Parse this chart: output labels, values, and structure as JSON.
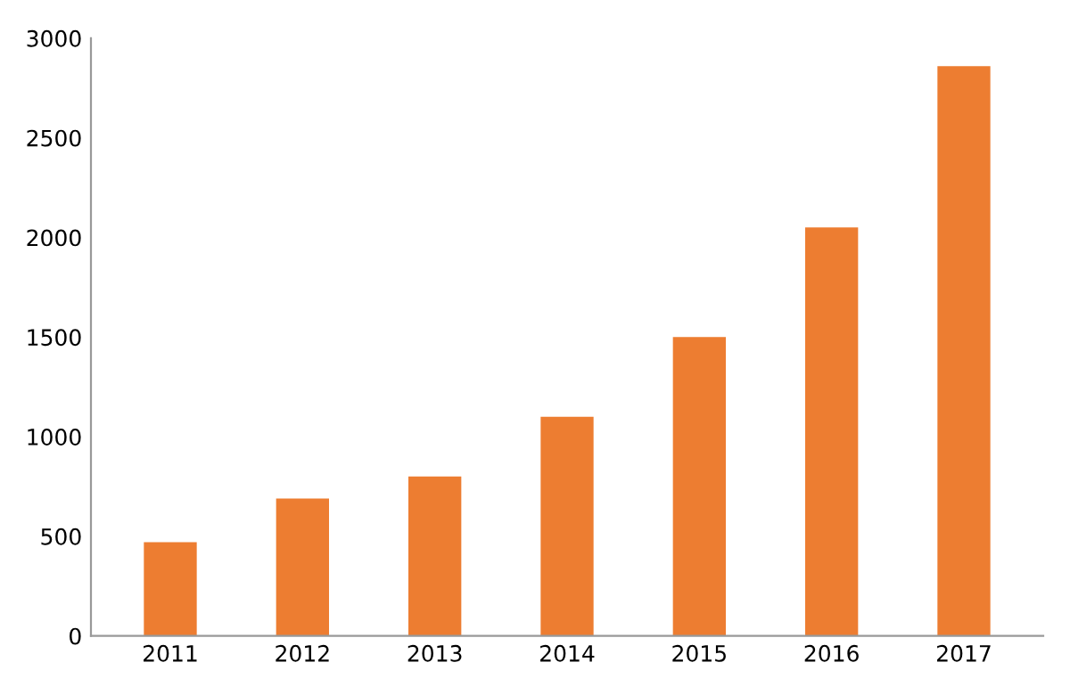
{
  "chart_data": {
    "type": "bar",
    "categories": [
      "2011",
      "2012",
      "2013",
      "2014",
      "2015",
      "2016",
      "2017"
    ],
    "values": [
      470,
      690,
      800,
      1100,
      1500,
      2050,
      2860
    ],
    "color": "#ed7d31",
    "ylim": [
      0,
      3000
    ],
    "yticks": [
      0,
      500,
      1000,
      1500,
      2000,
      2500,
      3000
    ],
    "grid": false
  }
}
